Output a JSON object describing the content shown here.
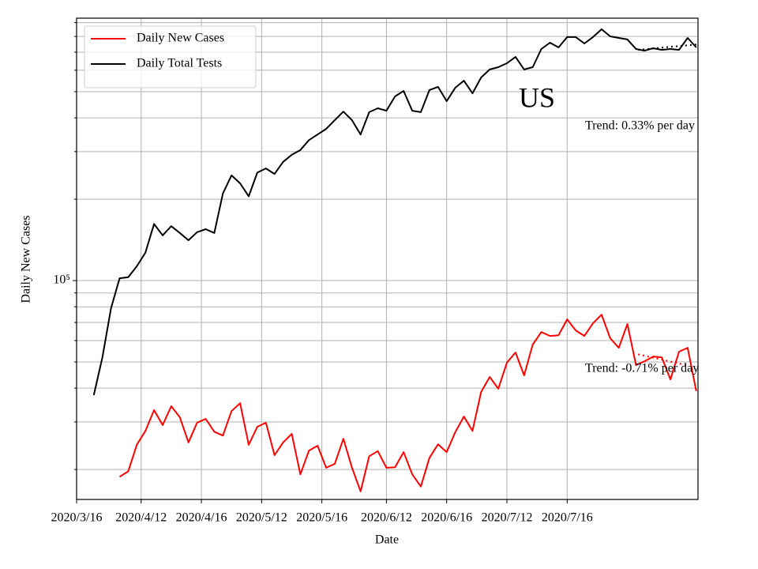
{
  "chart_data": {
    "type": "line",
    "xlabel": "Date",
    "ylabel": "Daily New Cases",
    "log_scale": true,
    "grid": true,
    "legend": "upper left",
    "xlim": [
      0,
      144.4
    ],
    "xticks": [
      {
        "value": 0,
        "label": "2020/3/16"
      },
      {
        "value": 15,
        "label": "2020/4/12"
      },
      {
        "value": 29,
        "label": "2020/4/16"
      },
      {
        "value": 43,
        "label": "2020/5/12"
      },
      {
        "value": 57,
        "label": "2020/5/16"
      },
      {
        "value": 72,
        "label": "2020/6/12"
      },
      {
        "value": 86,
        "label": "2020/6/16"
      },
      {
        "value": 100,
        "label": "2020/7/12"
      },
      {
        "value": 114,
        "label": "2020/7/16"
      }
    ],
    "ylim": [
      15500,
      935000
    ],
    "yticks": [
      {
        "value": 100000,
        "label": "10⁵"
      }
    ],
    "yticks_minor": [
      20000,
      30000,
      40000,
      50000,
      60000,
      70000,
      80000,
      90000,
      200000,
      300000,
      400000,
      500000,
      600000,
      700000,
      800000,
      900000
    ],
    "series": [
      {
        "name": "Daily New Cases",
        "color": "#ff0000",
        "x": [
          10,
          12,
          14,
          16,
          18,
          20,
          22,
          24,
          26,
          28,
          30,
          32,
          34,
          36,
          38,
          40,
          42,
          44,
          46,
          48,
          50,
          52,
          54,
          56,
          58,
          60,
          62,
          64,
          66,
          68,
          70,
          72,
          74,
          76,
          78,
          80,
          82,
          84,
          86,
          88,
          90,
          92,
          94,
          96,
          98,
          100,
          102,
          104,
          106,
          108,
          110,
          112,
          114,
          116,
          118,
          120,
          122,
          124,
          126,
          128,
          130,
          132,
          134,
          136,
          138,
          140,
          142,
          144
        ],
        "values": [
          18800,
          19700,
          24700,
          27800,
          33200,
          29200,
          34300,
          31200,
          25200,
          29800,
          30800,
          27600,
          26700,
          32900,
          35200,
          24700,
          28800,
          29800,
          22600,
          25200,
          27100,
          19200,
          23500,
          24500,
          20300,
          21000,
          26000,
          20300,
          16600,
          22400,
          23400,
          20300,
          20400,
          23200,
          19200,
          17300,
          22100,
          24800,
          23200,
          27500,
          31400,
          27800,
          38700,
          44000,
          39800,
          49700,
          54200,
          44600,
          58000,
          64500,
          62400,
          62800,
          71900,
          65400,
          62400,
          69500,
          74800,
          61200,
          56400,
          69100,
          48700,
          50300,
          52400,
          52000,
          43100,
          54600,
          56400,
          39000
        ]
      },
      {
        "name": "Daily Total Tests",
        "color": "#000000",
        "x": [
          4,
          6,
          8,
          10,
          12,
          14,
          16,
          18,
          20,
          22,
          24,
          26,
          28,
          30,
          32,
          34,
          36,
          38,
          40,
          42,
          44,
          46,
          48,
          50,
          52,
          54,
          56,
          58,
          60,
          62,
          64,
          66,
          68,
          70,
          72,
          74,
          76,
          78,
          80,
          82,
          84,
          86,
          88,
          90,
          92,
          94,
          96,
          98,
          100,
          102,
          104,
          106,
          108,
          110,
          112,
          114,
          116,
          118,
          120,
          122,
          124,
          126,
          128,
          130,
          132,
          134,
          136,
          138,
          140,
          142,
          144
        ],
        "values": [
          37700,
          52000,
          79000,
          102000,
          103000,
          113000,
          127000,
          162000,
          147000,
          159000,
          150000,
          141000,
          151000,
          155000,
          150000,
          210000,
          245000,
          229000,
          205000,
          251000,
          260000,
          248000,
          275000,
          292000,
          304000,
          331000,
          347000,
          364000,
          392000,
          422000,
          392000,
          347000,
          420000,
          434000,
          425000,
          480000,
          503000,
          425000,
          420000,
          507000,
          521000,
          461000,
          517000,
          549000,
          493000,
          564000,
          604000,
          616000,
          637000,
          672000,
          604000,
          616000,
          719000,
          759000,
          729000,
          796000,
          796000,
          754000,
          796000,
          851000,
          801000,
          790000,
          780000,
          719000,
          709000,
          724000,
          714000,
          719000,
          714000,
          790000,
          729000
        ]
      }
    ],
    "trend_lines": [
      {
        "color": "#ff0000",
        "x": [
          130.5,
          142
        ],
        "values": [
          53400,
          48500
        ]
      },
      {
        "color": "#000000",
        "x": [
          130.5,
          144.4
        ],
        "values": [
          714000,
          748000
        ]
      }
    ],
    "annotations": [
      {
        "text": "US"
      },
      {
        "text": "Trend: 0.33% per day"
      },
      {
        "text": "Trend: -0.71% per day"
      }
    ]
  }
}
